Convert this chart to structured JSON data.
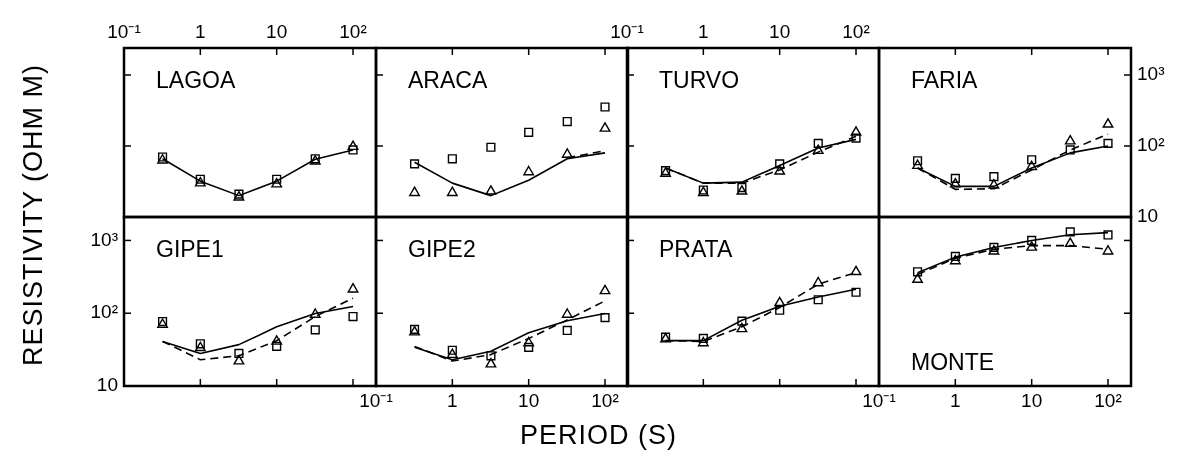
{
  "chart_data": [
    {
      "type": "line",
      "title": "LAGOA",
      "x": [
        0.32,
        1,
        3.2,
        10,
        32,
        100
      ],
      "log": "xy",
      "xlim": [
        0.1,
        200
      ],
      "ylim": [
        10,
        2400
      ],
      "xticks": [
        {
          "value": 0.1,
          "label": "10⁻¹"
        },
        {
          "value": 1,
          "label": "1"
        },
        {
          "value": 10,
          "label": "10"
        },
        {
          "value": 100,
          "label": "10²"
        }
      ],
      "yticks": [
        {
          "value": 10,
          "label": null
        },
        {
          "value": 100,
          "label": null
        },
        {
          "value": 1000,
          "label": null
        }
      ],
      "tick_labels": "x",
      "legend": false,
      "grid": false,
      "series": [
        {
          "type": "scatter",
          "marker": "square",
          "color": "#000000",
          "values": [
            70,
            34,
            21,
            34,
            66,
            88
          ]
        },
        {
          "type": "scatter",
          "marker": "triangle",
          "color": "#000000",
          "values": [
            63,
            30,
            19,
            29,
            61,
            98
          ]
        },
        {
          "type": "line",
          "line_style": "solid",
          "color": "#000000",
          "values": [
            66,
            32,
            20,
            32,
            65,
            88
          ]
        }
      ]
    },
    {
      "type": "line",
      "title": "ARACA",
      "x": [
        0.32,
        1,
        3.2,
        10,
        32,
        100
      ],
      "log": "xy",
      "xlim": [
        0.1,
        200
      ],
      "ylim": [
        10,
        2400
      ],
      "xticks": [
        {
          "value": 0.1,
          "label": null
        },
        {
          "value": 1,
          "label": null
        },
        {
          "value": 10,
          "label": null
        },
        {
          "value": 100,
          "label": null
        }
      ],
      "yticks": [
        {
          "value": 10,
          "label": null
        },
        {
          "value": 100,
          "label": null
        },
        {
          "value": 1000,
          "label": null
        }
      ],
      "tick_labels": false,
      "legend": false,
      "grid": false,
      "series": [
        {
          "type": "scatter",
          "marker": "square",
          "color": "#000000",
          "values": [
            56,
            66,
            96,
            156,
            221,
            354
          ]
        },
        {
          "type": "scatter",
          "marker": "triangle",
          "color": "#000000",
          "values": [
            22,
            22,
            23,
            43,
            76,
            177
          ]
        },
        {
          "type": "line",
          "line_style": "solid",
          "color": "#000000",
          "values": [
            59,
            30,
            20,
            33,
            66,
            80
          ]
        },
        {
          "type": "line",
          "line_style": "dashed",
          "color": "#000000",
          "values": [
            null,
            null,
            null,
            null,
            68,
            86
          ]
        }
      ]
    },
    {
      "type": "line",
      "title": "TURVO",
      "x": [
        0.32,
        1,
        3.2,
        10,
        32,
        100
      ],
      "log": "xy",
      "xlim": [
        0.1,
        200
      ],
      "ylim": [
        10,
        2400
      ],
      "xticks": [
        {
          "value": 0.1,
          "label": "10⁻¹"
        },
        {
          "value": 1,
          "label": "1"
        },
        {
          "value": 10,
          "label": "10"
        },
        {
          "value": 100,
          "label": "10²"
        }
      ],
      "yticks": [
        {
          "value": 10,
          "label": null
        },
        {
          "value": 100,
          "label": null
        },
        {
          "value": 1000,
          "label": null
        }
      ],
      "tick_labels": "x",
      "legend": false,
      "grid": false,
      "series": [
        {
          "type": "scatter",
          "marker": "square",
          "color": "#000000",
          "values": [
            45,
            24,
            26,
            56,
            109,
            129
          ]
        },
        {
          "type": "scatter",
          "marker": "triangle",
          "color": "#000000",
          "values": [
            41,
            22,
            23,
            44,
            86,
            156
          ]
        },
        {
          "type": "line",
          "line_style": "solid",
          "color": "#000000",
          "values": [
            49,
            30,
            31,
            53,
            94,
            124
          ]
        },
        {
          "type": "line",
          "line_style": "dashed",
          "color": "#000000",
          "values": [
            49,
            30,
            30,
            46,
            82,
            137
          ]
        }
      ]
    },
    {
      "type": "line",
      "title": "FARIA",
      "x": [
        0.32,
        1,
        3.2,
        10,
        32,
        100
      ],
      "log": "xy",
      "xlim": [
        0.1,
        200
      ],
      "ylim": [
        10,
        2400
      ],
      "xticks": [
        {
          "value": 0.1,
          "label": null
        },
        {
          "value": 1,
          "label": null
        },
        {
          "value": 10,
          "label": null
        },
        {
          "value": 100,
          "label": null
        }
      ],
      "yticks": [
        10,
        {
          "value": 100,
          "label": "10²"
        },
        {
          "value": 1000,
          "label": "10³"
        }
      ],
      "tick_labels": "y",
      "legend": false,
      "grid": false,
      "series": [
        {
          "type": "scatter",
          "marker": "square",
          "color": "#000000",
          "values": [
            62,
            35,
            37,
            64,
            88,
            109
          ]
        },
        {
          "type": "scatter",
          "marker": "triangle",
          "color": "#000000",
          "values": [
            53,
            29,
            28,
            51,
            117,
            202
          ]
        },
        {
          "type": "line",
          "line_style": "solid",
          "color": "#000000",
          "values": [
            49,
            27,
            27,
            49,
            80,
            100
          ]
        },
        {
          "type": "line",
          "line_style": "dashed",
          "color": "#000000",
          "values": [
            49,
            24.5,
            25,
            46,
            88,
            147
          ]
        }
      ]
    },
    {
      "type": "line",
      "title": "GIPE1",
      "ylabel": "RESISTIVITY (OHM M)",
      "x": [
        0.32,
        1,
        3.2,
        10,
        32,
        100
      ],
      "log": "xy",
      "xlim": [
        0.1,
        200
      ],
      "ylim": [
        10,
        2100
      ],
      "xticks": [
        {
          "value": 0.1,
          "label": null
        },
        {
          "value": 1,
          "label": null
        },
        {
          "value": 10,
          "label": null
        },
        {
          "value": 100,
          "label": null
        }
      ],
      "yticks": [
        10,
        {
          "value": 100,
          "label": "10²"
        },
        {
          "value": 1000,
          "label": "10³"
        }
      ],
      "tick_labels": "y",
      "legend": false,
      "grid": false,
      "series": [
        {
          "type": "scatter",
          "marker": "square",
          "color": "#000000",
          "values": [
            77,
            38,
            28,
            35,
            59,
            90
          ]
        },
        {
          "type": "scatter",
          "marker": "triangle",
          "color": "#000000",
          "values": [
            70,
            33.5,
            22,
            41,
            96,
            214
          ]
        },
        {
          "type": "line",
          "line_style": "solid",
          "color": "#000000",
          "values": [
            41,
            28,
            37,
            65,
            99,
            124
          ]
        },
        {
          "type": "line",
          "line_style": "dashed",
          "color": "#000000",
          "values": [
            41,
            23,
            26,
            42,
            90,
            161
          ]
        }
      ]
    },
    {
      "type": "line",
      "title": "GIPE2",
      "xlabel": "PERIOD (S)",
      "x": [
        0.32,
        1,
        3.2,
        10,
        32,
        100
      ],
      "log": "xy",
      "xlim": [
        0.1,
        200
      ],
      "ylim": [
        10,
        2100
      ],
      "xticks": [
        {
          "value": 0.1,
          "label": "10⁻¹"
        },
        {
          "value": 1,
          "label": "1"
        },
        {
          "value": 10,
          "label": "10"
        },
        {
          "value": 100,
          "label": "10²"
        }
      ],
      "yticks": [
        {
          "value": 10,
          "label": null
        },
        {
          "value": 100,
          "label": null
        },
        {
          "value": 1000,
          "label": null
        }
      ],
      "tick_labels": "x",
      "legend": false,
      "grid": false,
      "series": [
        {
          "type": "scatter",
          "marker": "square",
          "color": "#000000",
          "values": [
            60,
            31,
            26,
            34,
            58,
            87
          ]
        },
        {
          "type": "scatter",
          "marker": "triangle",
          "color": "#000000",
          "values": [
            55,
            27,
            20,
            39,
            96,
            203
          ]
        },
        {
          "type": "line",
          "line_style": "solid",
          "color": "#000000",
          "values": [
            34,
            23,
            30,
            54,
            79,
            99
          ]
        },
        {
          "type": "line",
          "line_style": "dashed",
          "color": "#000000",
          "values": [
            35,
            22,
            27,
            45,
            81,
            148
          ]
        }
      ]
    },
    {
      "type": "line",
      "title": "PRATA",
      "x": [
        0.32,
        1,
        3.2,
        10,
        32,
        100
      ],
      "log": "xy",
      "xlim": [
        0.1,
        200
      ],
      "ylim": [
        10,
        2100
      ],
      "xticks": [
        {
          "value": 0.1,
          "label": null
        },
        {
          "value": 1,
          "label": null
        },
        {
          "value": 10,
          "label": null
        },
        {
          "value": 100,
          "label": null
        }
      ],
      "yticks": [
        {
          "value": 10,
          "label": null
        },
        {
          "value": 100,
          "label": null
        },
        {
          "value": 1000,
          "label": null
        }
      ],
      "tick_labels": false,
      "legend": false,
      "grid": false,
      "series": [
        {
          "type": "scatter",
          "marker": "square",
          "color": "#000000",
          "values": [
            47,
            45,
            78,
            110,
            153,
            194
          ]
        },
        {
          "type": "scatter",
          "marker": "triangle",
          "color": "#000000",
          "values": [
            44,
            39,
            61,
            139,
            260,
            371
          ]
        },
        {
          "type": "line",
          "line_style": "solid",
          "color": "#000000",
          "values": [
            42,
            42,
            80,
            125,
            167,
            214
          ]
        },
        {
          "type": "line",
          "line_style": "dashed",
          "color": "#000000",
          "values": [
            42,
            41,
            65,
            120,
            251,
            362
          ]
        }
      ]
    },
    {
      "type": "line",
      "title": "MONTE",
      "x": [
        0.32,
        1,
        3.2,
        10,
        32,
        100
      ],
      "log": "xy",
      "xlim": [
        0.1,
        200
      ],
      "ylim": [
        10,
        2100
      ],
      "xticks": [
        {
          "value": 0.1,
          "label": "10⁻¹"
        },
        {
          "value": 1,
          "label": "1"
        },
        {
          "value": 10,
          "label": "10"
        },
        {
          "value": 100,
          "label": "10²"
        }
      ],
      "yticks": [
        {
          "value": 10,
          "label": null
        },
        {
          "value": 100,
          "label": null
        },
        {
          "value": 1000,
          "label": null
        }
      ],
      "tick_labels": "x",
      "legend": false,
      "grid": false,
      "series": [
        {
          "type": "scatter",
          "marker": "square",
          "color": "#000000",
          "values": [
            371,
            605,
            802,
            1000,
            1310,
            1190
          ]
        },
        {
          "type": "scatter",
          "marker": "triangle",
          "color": "#000000",
          "values": [
            290,
            522,
            710,
            802,
            906,
            710
          ]
        },
        {
          "type": "line",
          "line_style": "solid",
          "color": "#000000",
          "values": [
            361,
            590,
            802,
            1000,
            1200,
            1280
          ]
        },
        {
          "type": "line",
          "line_style": "dashed",
          "color": "#000000",
          "values": [
            340,
            570,
            755,
            850,
            850,
            755
          ]
        }
      ]
    }
  ]
}
